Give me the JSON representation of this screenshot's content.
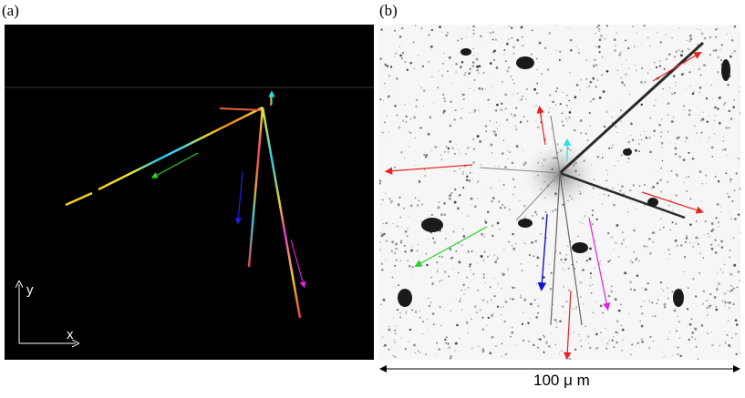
{
  "panel_a": {
    "label": "(a)",
    "axis_x_label": "x",
    "axis_y_label": "y"
  },
  "panel_b": {
    "label": "(b)"
  },
  "scale_bar": {
    "label": "100 μ m"
  },
  "colors": {
    "red": "#e8211f",
    "cyan": "#22e4e8",
    "green": "#29d12a",
    "blue": "#1414c8",
    "magenta": "#e020e0"
  }
}
